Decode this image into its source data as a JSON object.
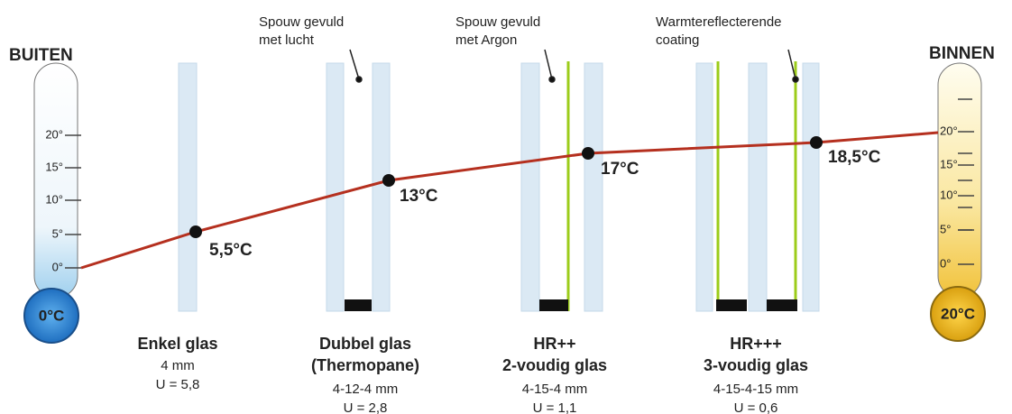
{
  "outside": {
    "title": "BUITEN",
    "ticks": [
      "20°",
      "15°",
      "10°",
      "5°",
      "0°"
    ],
    "bulb": "0°C"
  },
  "inside": {
    "title": "BINNEN",
    "ticks": [
      "20°",
      "15°",
      "10°",
      "5°",
      "0°"
    ],
    "bulb": "20°C"
  },
  "annotations": [
    {
      "lines": [
        "Spouw gevuld",
        "met lucht"
      ]
    },
    {
      "lines": [
        "Spouw gevuld",
        "met Argon"
      ]
    },
    {
      "lines": [
        "Warmtereflecterende",
        "coating"
      ]
    }
  ],
  "temperatures": [
    "5,5°C",
    "13°C",
    "17°C",
    "18,5°C"
  ],
  "glazing": [
    {
      "name": [
        "Enkel glas"
      ],
      "specs": [
        "4 mm",
        "U = 5,8"
      ]
    },
    {
      "name": [
        "Dubbel glas",
        "(Thermopane)"
      ],
      "specs": [
        "4-12-4 mm",
        "U = 2,8"
      ]
    },
    {
      "name": [
        "HR++",
        "2-voudig glas"
      ],
      "specs": [
        "4-15-4 mm",
        "U = 1,1"
      ]
    },
    {
      "name": [
        "HR+++",
        "3-voudig glas"
      ],
      "specs": [
        "4-15-4-15 mm",
        "U = 0,6"
      ]
    }
  ]
}
